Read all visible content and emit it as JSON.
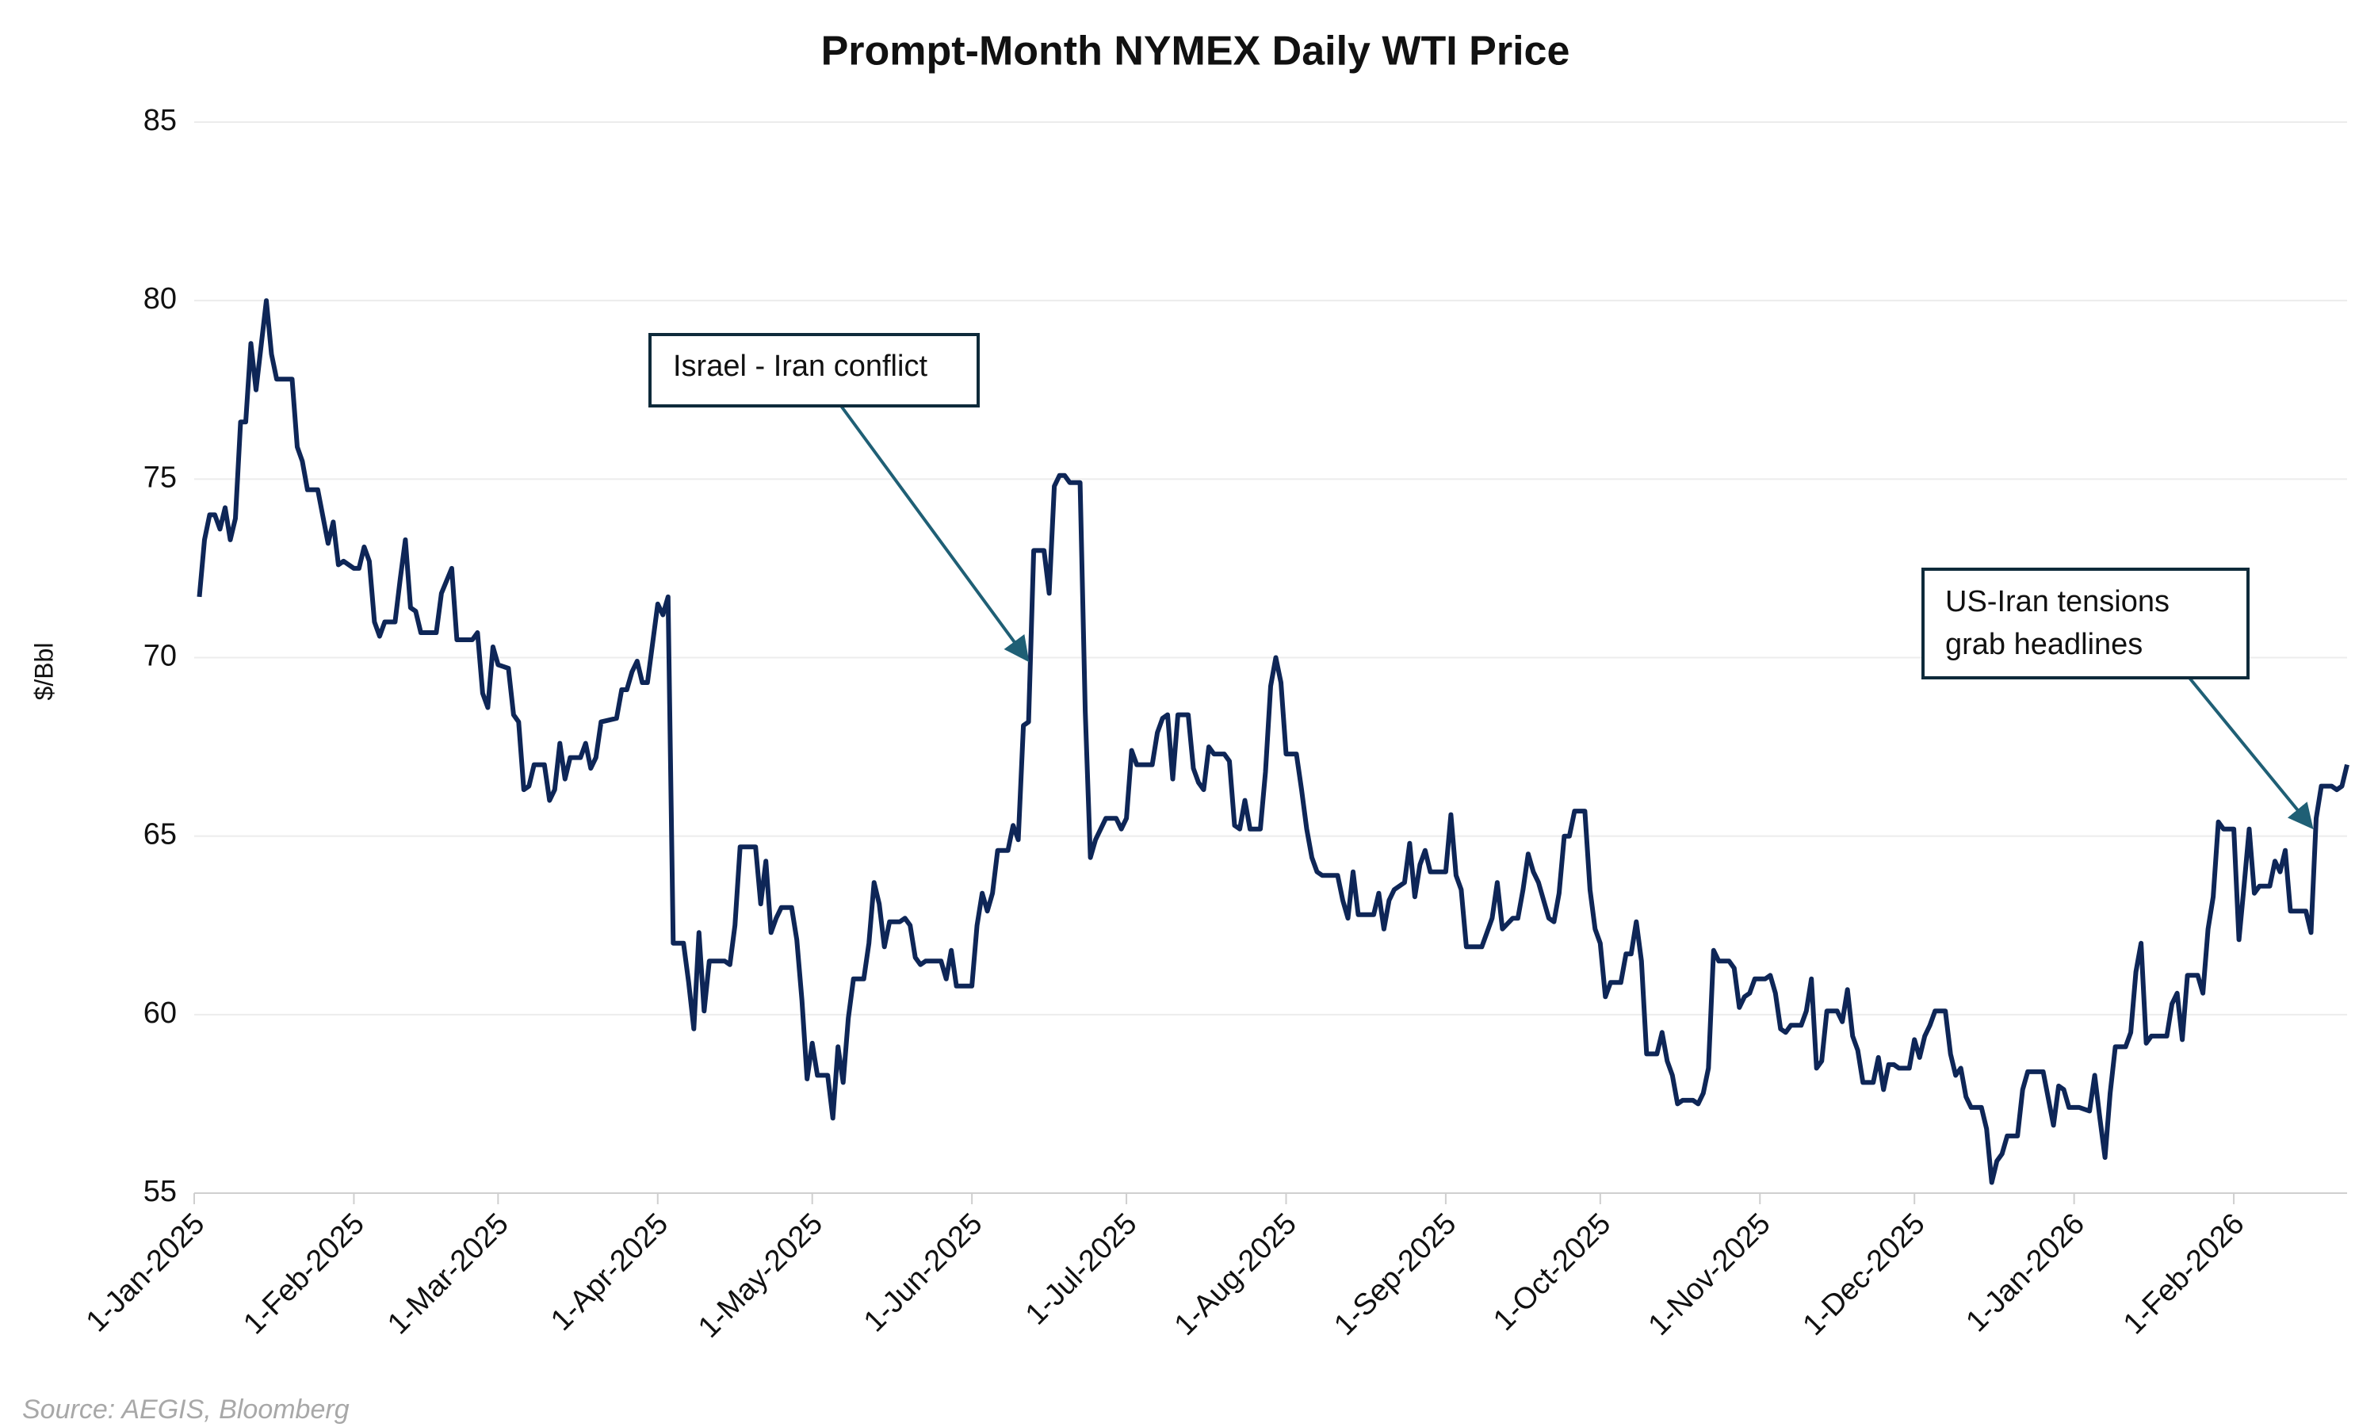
{
  "chart_data": {
    "type": "line",
    "title": "Prompt-Month NYMEX Daily WTI Price",
    "y_label": "$/Bbl",
    "source": "Source: AEGIS, Bloomberg",
    "color": "#0e2657",
    "grid": true,
    "xlim": [
      "2025-01-01",
      "2026-02-23"
    ],
    "ylim": [
      55,
      85
    ],
    "yticks": [
      55,
      60,
      65,
      70,
      75,
      80,
      85
    ],
    "xticks": [
      {
        "value": "2025-01-01",
        "label": "1-Jan-2025"
      },
      {
        "value": "2025-02-01",
        "label": "1-Feb-2025"
      },
      {
        "value": "2025-03-01",
        "label": "1-Mar-2025"
      },
      {
        "value": "2025-04-01",
        "label": "1-Apr-2025"
      },
      {
        "value": "2025-05-01",
        "label": "1-May-2025"
      },
      {
        "value": "2025-06-01",
        "label": "1-Jun-2025"
      },
      {
        "value": "2025-07-01",
        "label": "1-Jul-2025"
      },
      {
        "value": "2025-08-01",
        "label": "1-Aug-2025"
      },
      {
        "value": "2025-09-01",
        "label": "1-Sep-2025"
      },
      {
        "value": "2025-10-01",
        "label": "1-Oct-2025"
      },
      {
        "value": "2025-11-01",
        "label": "1-Nov-2025"
      },
      {
        "value": "2025-12-01",
        "label": "1-Dec-2025"
      },
      {
        "value": "2026-01-01",
        "label": "1-Jan-2026"
      },
      {
        "value": "2026-02-01",
        "label": "1-Feb-2026"
      }
    ],
    "annotations": [
      {
        "text": [
          "Israel - Iran conflict"
        ]
      },
      {
        "text": [
          "US-Iran tensions",
          "grab headlines"
        ]
      }
    ],
    "x": [
      "2025-01-02",
      "2025-01-03",
      "2025-01-04",
      "2025-01-05",
      "2025-01-06",
      "2025-01-07",
      "2025-01-08",
      "2025-01-09",
      "2025-01-10",
      "2025-01-11",
      "2025-01-12",
      "2025-01-13",
      "2025-01-15",
      "2025-01-16",
      "2025-01-17",
      "2025-01-20",
      "2025-01-21",
      "2025-01-22",
      "2025-01-23",
      "2025-01-25",
      "2025-01-27",
      "2025-01-28",
      "2025-01-29",
      "2025-01-30",
      "2025-02-01",
      "2025-02-02",
      "2025-02-03",
      "2025-02-04",
      "2025-02-05",
      "2025-02-06",
      "2025-02-07",
      "2025-02-09",
      "2025-02-10",
      "2025-02-11",
      "2025-02-12",
      "2025-02-13",
      "2025-02-14",
      "2025-02-17",
      "2025-02-18",
      "2025-02-20",
      "2025-02-21",
      "2025-02-24",
      "2025-02-25",
      "2025-02-26",
      "2025-02-27",
      "2025-02-28",
      "2025-03-01",
      "2025-03-03",
      "2025-03-04",
      "2025-03-05",
      "2025-03-06",
      "2025-03-07",
      "2025-03-08",
      "2025-03-10",
      "2025-03-11",
      "2025-03-12",
      "2025-03-13",
      "2025-03-14",
      "2025-03-15",
      "2025-03-17",
      "2025-03-18",
      "2025-03-19",
      "2025-03-20",
      "2025-03-21",
      "2025-03-24",
      "2025-03-25",
      "2025-03-26",
      "2025-03-27",
      "2025-03-28",
      "2025-03-29",
      "2025-03-30",
      "2025-04-01",
      "2025-04-02",
      "2025-04-03",
      "2025-04-04",
      "2025-04-06",
      "2025-04-07",
      "2025-04-08",
      "2025-04-09",
      "2025-04-10",
      "2025-04-11",
      "2025-04-13",
      "2025-04-14",
      "2025-04-15",
      "2025-04-16",
      "2025-04-17",
      "2025-04-20",
      "2025-04-21",
      "2025-04-22",
      "2025-04-23",
      "2025-04-24",
      "2025-04-25",
      "2025-04-27",
      "2025-04-28",
      "2025-04-29",
      "2025-04-30",
      "2025-05-01",
      "2025-05-02",
      "2025-05-04",
      "2025-05-05",
      "2025-05-06",
      "2025-05-07",
      "2025-05-08",
      "2025-05-09",
      "2025-05-11",
      "2025-05-12",
      "2025-05-13",
      "2025-05-14",
      "2025-05-15",
      "2025-05-16",
      "2025-05-18",
      "2025-05-19",
      "2025-05-20",
      "2025-05-21",
      "2025-05-22",
      "2025-05-23",
      "2025-05-26",
      "2025-05-27",
      "2025-05-28",
      "2025-05-29",
      "2025-06-01",
      "2025-06-02",
      "2025-06-03",
      "2025-06-04",
      "2025-06-05",
      "2025-06-06",
      "2025-06-08",
      "2025-06-09",
      "2025-06-10",
      "2025-06-11",
      "2025-06-12",
      "2025-06-13",
      "2025-06-15",
      "2025-06-16",
      "2025-06-17",
      "2025-06-18",
      "2025-06-19",
      "2025-06-20",
      "2025-06-22",
      "2025-06-23",
      "2025-06-24",
      "2025-06-25",
      "2025-06-26",
      "2025-06-27",
      "2025-06-29",
      "2025-06-30",
      "2025-07-01",
      "2025-07-02",
      "2025-07-03",
      "2025-07-05",
      "2025-07-06",
      "2025-07-07",
      "2025-07-08",
      "2025-07-09",
      "2025-07-10",
      "2025-07-11",
      "2025-07-13",
      "2025-07-14",
      "2025-07-15",
      "2025-07-16",
      "2025-07-17",
      "2025-07-18",
      "2025-07-20",
      "2025-07-21",
      "2025-07-22",
      "2025-07-23",
      "2025-07-24",
      "2025-07-25",
      "2025-07-27",
      "2025-07-28",
      "2025-07-29",
      "2025-07-30",
      "2025-07-31",
      "2025-08-01",
      "2025-08-03",
      "2025-08-04",
      "2025-08-05",
      "2025-08-06",
      "2025-08-07",
      "2025-08-08",
      "2025-08-11",
      "2025-08-12",
      "2025-08-13",
      "2025-08-14",
      "2025-08-15",
      "2025-08-18",
      "2025-08-19",
      "2025-08-20",
      "2025-08-21",
      "2025-08-22",
      "2025-08-24",
      "2025-08-25",
      "2025-08-26",
      "2025-08-27",
      "2025-08-28",
      "2025-08-29",
      "2025-09-01",
      "2025-09-02",
      "2025-09-03",
      "2025-09-04",
      "2025-09-05",
      "2025-09-08",
      "2025-09-09",
      "2025-09-10",
      "2025-09-11",
      "2025-09-12",
      "2025-09-14",
      "2025-09-15",
      "2025-09-16",
      "2025-09-17",
      "2025-09-18",
      "2025-09-19",
      "2025-09-21",
      "2025-09-22",
      "2025-09-23",
      "2025-09-24",
      "2025-09-25",
      "2025-09-26",
      "2025-09-28",
      "2025-09-29",
      "2025-09-30",
      "2025-10-01",
      "2025-10-02",
      "2025-10-03",
      "2025-10-05",
      "2025-10-06",
      "2025-10-07",
      "2025-10-08",
      "2025-10-09",
      "2025-10-10",
      "2025-10-12",
      "2025-10-13",
      "2025-10-14",
      "2025-10-15",
      "2025-10-16",
      "2025-10-17",
      "2025-10-19",
      "2025-10-20",
      "2025-10-21",
      "2025-10-22",
      "2025-10-23",
      "2025-10-24",
      "2025-10-26",
      "2025-10-27",
      "2025-10-28",
      "2025-10-29",
      "2025-10-30",
      "2025-10-31",
      "2025-11-02",
      "2025-11-03",
      "2025-11-04",
      "2025-11-05",
      "2025-11-06",
      "2025-11-07",
      "2025-11-09",
      "2025-11-10",
      "2025-11-11",
      "2025-11-12",
      "2025-11-13",
      "2025-11-14",
      "2025-11-16",
      "2025-11-17",
      "2025-11-18",
      "2025-11-19",
      "2025-11-20",
      "2025-11-21",
      "2025-11-23",
      "2025-11-24",
      "2025-11-25",
      "2025-11-26",
      "2025-11-27",
      "2025-11-28",
      "2025-11-30",
      "2025-12-01",
      "2025-12-02",
      "2025-12-03",
      "2025-12-04",
      "2025-12-05",
      "2025-12-07",
      "2025-12-08",
      "2025-12-09",
      "2025-12-10",
      "2025-12-11",
      "2025-12-12",
      "2025-12-14",
      "2025-12-15",
      "2025-12-16",
      "2025-12-17",
      "2025-12-18",
      "2025-12-19",
      "2025-12-21",
      "2025-12-22",
      "2025-12-23",
      "2025-12-24",
      "2025-12-26",
      "2025-12-28",
      "2025-12-29",
      "2025-12-30",
      "2025-12-31",
      "2026-01-02",
      "2026-01-04",
      "2026-01-05",
      "2026-01-06",
      "2026-01-07",
      "2026-01-08",
      "2026-01-09",
      "2026-01-11",
      "2026-01-12",
      "2026-01-13",
      "2026-01-14",
      "2026-01-15",
      "2026-01-16",
      "2026-01-18",
      "2026-01-19",
      "2026-01-20",
      "2026-01-21",
      "2026-01-22",
      "2026-01-23",
      "2026-01-25",
      "2026-01-26",
      "2026-01-27",
      "2026-01-28",
      "2026-01-29",
      "2026-01-30",
      "2026-02-01",
      "2026-02-02",
      "2026-02-03",
      "2026-02-04",
      "2026-02-05",
      "2026-02-06",
      "2026-02-08",
      "2026-02-09",
      "2026-02-10",
      "2026-02-11",
      "2026-02-12",
      "2026-02-14",
      "2026-02-15",
      "2026-02-16",
      "2026-02-17",
      "2026-02-18",
      "2026-02-20",
      "2026-02-21",
      "2026-02-22",
      "2026-02-23"
    ],
    "values": [
      71.7,
      73.3,
      74.0,
      74.0,
      73.6,
      74.2,
      73.3,
      73.9,
      76.6,
      76.6,
      78.8,
      77.5,
      80.0,
      78.5,
      77.8,
      77.8,
      75.9,
      75.5,
      74.7,
      74.7,
      73.2,
      73.8,
      72.6,
      72.7,
      72.5,
      72.5,
      73.1,
      72.7,
      71.0,
      70.6,
      71.0,
      71.0,
      72.2,
      73.3,
      71.4,
      71.3,
      70.7,
      70.7,
      71.8,
      72.5,
      70.5,
      70.5,
      70.7,
      69.0,
      68.6,
      70.3,
      69.8,
      69.7,
      68.4,
      68.2,
      66.3,
      66.4,
      67.0,
      67.0,
      66.0,
      66.3,
      67.6,
      66.6,
      67.2,
      67.2,
      67.6,
      66.9,
      67.2,
      68.2,
      68.3,
      69.1,
      69.1,
      69.6,
      69.9,
      69.3,
      69.3,
      71.5,
      71.2,
      71.7,
      62.0,
      62.0,
      60.9,
      59.6,
      62.3,
      60.1,
      61.5,
      61.5,
      61.5,
      61.4,
      62.5,
      64.7,
      64.7,
      63.1,
      64.3,
      62.3,
      62.7,
      63.0,
      63.0,
      62.1,
      60.4,
      58.2,
      59.2,
      58.3,
      58.3,
      57.1,
      59.1,
      58.1,
      59.9,
      61.0,
      61.0,
      62.0,
      63.7,
      63.1,
      61.9,
      62.6,
      62.6,
      62.7,
      62.5,
      61.6,
      61.4,
      61.5,
      61.5,
      61.0,
      61.8,
      60.8,
      60.8,
      62.5,
      63.4,
      62.9,
      63.4,
      64.6,
      64.6,
      65.3,
      64.9,
      68.1,
      68.2,
      73.0,
      73.0,
      71.8,
      74.8,
      75.1,
      75.1,
      74.9,
      74.9,
      68.5,
      64.4,
      64.9,
      65.2,
      65.5,
      65.5,
      65.2,
      65.5,
      67.4,
      67.0,
      67.0,
      67.0,
      67.9,
      68.3,
      68.4,
      66.6,
      68.4,
      68.4,
      66.9,
      66.5,
      66.3,
      67.5,
      67.3,
      67.3,
      67.1,
      65.3,
      65.2,
      66.0,
      65.2,
      65.2,
      66.8,
      69.2,
      70.0,
      69.3,
      67.3,
      67.3,
      66.3,
      65.2,
      64.4,
      64.0,
      63.9,
      63.9,
      63.2,
      62.7,
      64.0,
      62.8,
      62.8,
      63.4,
      62.4,
      63.2,
      63.5,
      63.7,
      64.8,
      63.3,
      64.2,
      64.6,
      64.0,
      64.0,
      65.6,
      63.9,
      63.5,
      61.9,
      61.9,
      62.3,
      62.7,
      63.7,
      62.4,
      62.7,
      62.7,
      63.5,
      64.5,
      64.0,
      63.7,
      62.7,
      62.6,
      63.4,
      65.0,
      65.0,
      65.7,
      65.7,
      63.5,
      62.4,
      62.0,
      60.5,
      60.9,
      60.9,
      61.7,
      61.7,
      62.6,
      61.5,
      58.9,
      58.9,
      59.5,
      58.7,
      58.3,
      57.5,
      57.6,
      57.6,
      57.5,
      57.8,
      58.5,
      61.8,
      61.5,
      61.5,
      61.3,
      60.2,
      60.5,
      60.6,
      61.0,
      61.0,
      61.1,
      60.6,
      59.6,
      59.5,
      59.7,
      59.7,
      60.1,
      61.0,
      58.5,
      58.7,
      60.1,
      60.1,
      59.8,
      60.7,
      59.4,
      59.0,
      58.1,
      58.1,
      58.8,
      57.9,
      58.6,
      58.6,
      58.5,
      58.5,
      59.3,
      58.8,
      59.4,
      59.7,
      60.1,
      60.1,
      58.9,
      58.3,
      58.5,
      57.7,
      57.4,
      57.4,
      56.8,
      55.3,
      55.9,
      56.1,
      56.6,
      56.6,
      57.9,
      58.4,
      58.4,
      58.4,
      56.9,
      58.0,
      57.9,
      57.4,
      57.4,
      57.3,
      58.3,
      57.1,
      56.0,
      57.8,
      59.1,
      59.1,
      59.5,
      61.2,
      62.0,
      59.2,
      59.4,
      59.4,
      59.4,
      60.3,
      60.6,
      59.3,
      61.1,
      61.1,
      60.6,
      62.4,
      63.3,
      65.4,
      65.2,
      65.2,
      62.1,
      63.6,
      65.2,
      63.4,
      63.6,
      63.6,
      64.3,
      64.0,
      64.6,
      62.9,
      62.9,
      62.9,
      62.3,
      65.5,
      66.4,
      66.4,
      66.3,
      66.4,
      67.0
    ]
  }
}
